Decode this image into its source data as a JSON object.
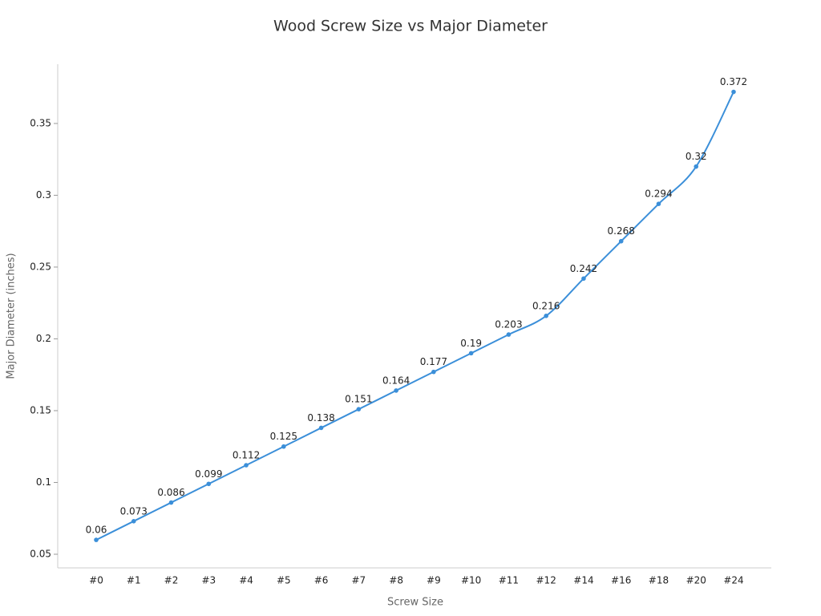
{
  "chart_data": {
    "type": "line",
    "title": "Wood Screw Size vs Major Diameter",
    "x_label": "Screw Size",
    "y_label": "Major Diameter (inches)",
    "categories": [
      "#0",
      "#1",
      "#2",
      "#3",
      "#4",
      "#5",
      "#6",
      "#7",
      "#8",
      "#9",
      "#10",
      "#11",
      "#12",
      "#14",
      "#16",
      "#18",
      "#20",
      "#24"
    ],
    "values": [
      0.06,
      0.073,
      0.086,
      0.099,
      0.112,
      0.125,
      0.138,
      0.151,
      0.164,
      0.177,
      0.19,
      0.203,
      0.216,
      0.242,
      0.268,
      0.294,
      0.32,
      0.372
    ],
    "color": "#3b8fd9",
    "ylim": [
      0.0405,
      0.3913
    ],
    "yticks": [
      0.05,
      0.1,
      0.15,
      0.2,
      0.25,
      0.3,
      0.35
    ],
    "grid": false
  }
}
